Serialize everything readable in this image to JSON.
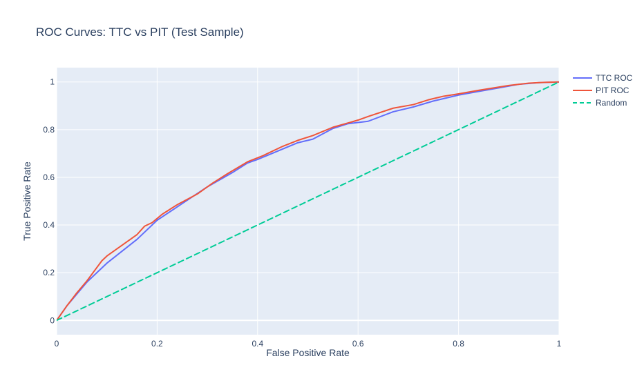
{
  "chart_data": {
    "type": "line",
    "title": "ROC Curves: TTC vs PIT (Test Sample)",
    "xlabel": "False Positive Rate",
    "ylabel": "True Positive Rate",
    "xlim": [
      0,
      1
    ],
    "ylim": [
      -0.06,
      1.06
    ],
    "x_ticks": [
      0,
      0.2,
      0.4,
      0.6,
      0.8,
      1
    ],
    "x_tick_labels": [
      "0",
      "0.2",
      "0.4",
      "0.6",
      "0.8",
      "1"
    ],
    "y_ticks": [
      0,
      0.2,
      0.4,
      0.6,
      0.8,
      1
    ],
    "y_tick_labels": [
      "0",
      "0.2",
      "0.4",
      "0.6",
      "0.8",
      "1"
    ],
    "grid": true,
    "legend_position": "top-right",
    "background_color": "#e5ecf6",
    "series": [
      {
        "name": "TTC ROC",
        "color": "#636efa",
        "dash": "solid",
        "x": [
          0,
          0.02,
          0.04,
          0.06,
          0.08,
          0.1,
          0.13,
          0.16,
          0.2,
          0.25,
          0.3,
          0.35,
          0.38,
          0.4,
          0.44,
          0.48,
          0.51,
          0.55,
          0.58,
          0.6,
          0.62,
          0.67,
          0.71,
          0.75,
          0.8,
          0.84,
          0.88,
          0.92,
          0.96,
          1.0
        ],
        "y": [
          0,
          0.06,
          0.11,
          0.16,
          0.2,
          0.24,
          0.29,
          0.34,
          0.42,
          0.49,
          0.56,
          0.62,
          0.66,
          0.675,
          0.71,
          0.745,
          0.76,
          0.805,
          0.825,
          0.83,
          0.835,
          0.875,
          0.895,
          0.92,
          0.945,
          0.96,
          0.975,
          0.99,
          0.997,
          1.0
        ]
      },
      {
        "name": "PIT ROC",
        "color": "#ef553b",
        "dash": "solid",
        "x": [
          0,
          0.02,
          0.04,
          0.06,
          0.09,
          0.1,
          0.13,
          0.16,
          0.175,
          0.19,
          0.21,
          0.24,
          0.28,
          0.31,
          0.34,
          0.38,
          0.41,
          0.45,
          0.48,
          0.51,
          0.55,
          0.6,
          0.62,
          0.67,
          0.71,
          0.74,
          0.77,
          0.8,
          0.84,
          0.87,
          0.9,
          0.94,
          0.97,
          1.0
        ],
        "y": [
          0,
          0.06,
          0.115,
          0.165,
          0.25,
          0.27,
          0.315,
          0.36,
          0.395,
          0.41,
          0.445,
          0.485,
          0.53,
          0.575,
          0.615,
          0.665,
          0.69,
          0.73,
          0.755,
          0.775,
          0.81,
          0.84,
          0.855,
          0.89,
          0.905,
          0.925,
          0.94,
          0.95,
          0.965,
          0.975,
          0.985,
          0.995,
          0.998,
          1.0
        ]
      },
      {
        "name": "Random",
        "color": "#00cc96",
        "dash": "dashed",
        "x": [
          0,
          1
        ],
        "y": [
          0,
          1
        ]
      }
    ]
  }
}
